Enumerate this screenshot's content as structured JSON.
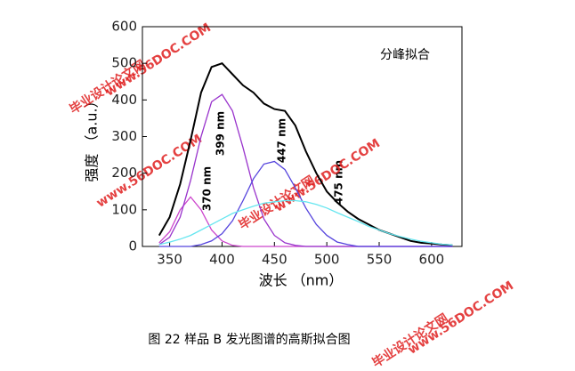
{
  "chart_data": {
    "type": "line",
    "annotation": "分峰拟合",
    "xlabel": "波长 （nm）",
    "ylabel": "强度 （a.u.）",
    "peak_labels": [
      "370 nm",
      "399 nm",
      "447 nm",
      "475 nm"
    ],
    "caption": "图 22    样品 B 发光图谱的高斯拟合图",
    "watermark": [
      "毕业设计论文网",
      "www.56DOC.COM"
    ],
    "x": [
      340,
      350,
      360,
      370,
      380,
      390,
      400,
      410,
      420,
      430,
      440,
      450,
      460,
      470,
      480,
      490,
      500,
      510,
      520,
      530,
      540,
      550,
      560,
      570,
      580,
      590,
      600,
      610,
      620
    ],
    "series": [
      {
        "color": "#000000",
        "values": [
          30,
          80,
          170,
          290,
          420,
          490,
          500,
          470,
          440,
          420,
          390,
          375,
          370,
          330,
          260,
          200,
          150,
          120,
          95,
          75,
          60,
          45,
          35,
          25,
          15,
          10,
          8,
          5,
          3
        ]
      },
      {
        "color": "#cc44cc",
        "values": [
          10,
          40,
          100,
          135,
          100,
          45,
          15,
          3,
          0,
          0,
          0,
          0,
          0,
          0,
          0,
          0,
          0,
          0,
          0,
          0,
          0,
          0,
          0,
          0,
          0,
          0,
          0,
          0,
          0
        ]
      },
      {
        "color": "#9933cc",
        "values": [
          5,
          25,
          80,
          180,
          300,
          395,
          415,
          370,
          270,
          160,
          75,
          30,
          10,
          3,
          0,
          0,
          0,
          0,
          0,
          0,
          0,
          0,
          0,
          0,
          0,
          0,
          0,
          0,
          0
        ]
      },
      {
        "color": "#5544dd",
        "values": [
          0,
          0,
          0,
          0,
          5,
          15,
          35,
          70,
          125,
          185,
          225,
          232,
          210,
          160,
          105,
          60,
          30,
          12,
          5,
          0,
          0,
          0,
          0,
          0,
          0,
          0,
          0,
          0,
          0
        ]
      },
      {
        "color": "#66e6f0",
        "values": [
          5,
          12,
          20,
          30,
          45,
          60,
          75,
          90,
          100,
          110,
          118,
          122,
          125,
          125,
          122,
          115,
          105,
          92,
          80,
          68,
          55,
          45,
          35,
          27,
          20,
          14,
          10,
          6,
          4
        ]
      }
    ],
    "xlim": [
      324,
      629
    ],
    "xticks": [
      350,
      400,
      450,
      500,
      550,
      600
    ],
    "ylim": [
      0,
      600
    ],
    "yticks": [
      0,
      100,
      200,
      300,
      400,
      500,
      600
    ]
  }
}
